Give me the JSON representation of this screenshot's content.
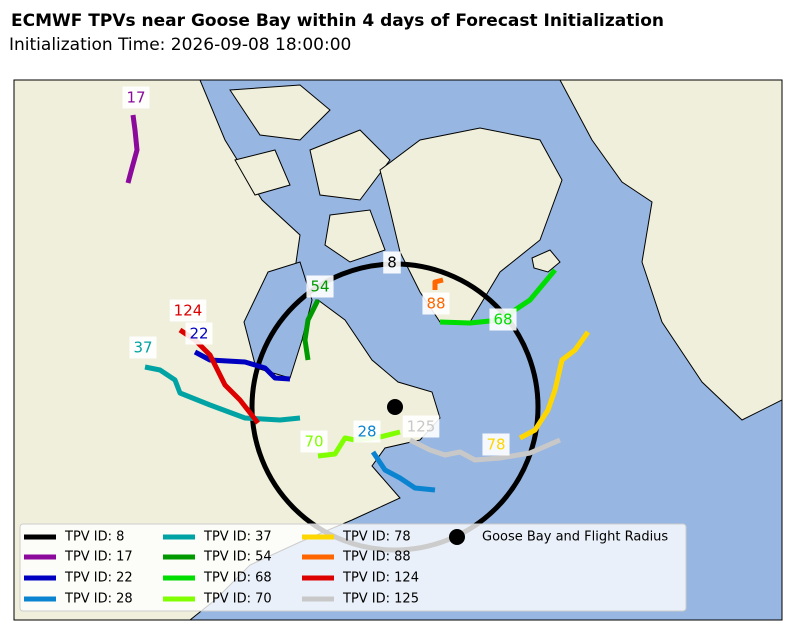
{
  "header": {
    "title": "ECMWF TPVs near Goose Bay within 4 days of Forecast Initialization",
    "subtitle": "Initialization Time: 2026-09-08 18:00:00"
  },
  "tracks": [
    {
      "label": "8",
      "name": "TPV ID: 8",
      "color": "#000000"
    },
    {
      "label": "17",
      "name": "TPV ID: 17",
      "color": "#8b0a9b"
    },
    {
      "label": "22",
      "name": "TPV ID: 22",
      "color": "#0000c0"
    },
    {
      "label": "28",
      "name": "TPV ID: 28",
      "color": "#0a84d0"
    },
    {
      "label": "37",
      "name": "TPV ID: 37",
      "color": "#00a3a3"
    },
    {
      "label": "54",
      "name": "TPV ID: 54",
      "color": "#009a00"
    },
    {
      "label": "68",
      "name": "TPV ID: 68",
      "color": "#00dd00"
    },
    {
      "label": "70",
      "name": "TPV ID: 70",
      "color": "#80ff00"
    },
    {
      "label": "78",
      "name": "TPV ID: 78",
      "color": "#ffd700"
    },
    {
      "label": "88",
      "name": "TPV ID: 88",
      "color": "#ff6600"
    },
    {
      "label": "124",
      "name": "TPV ID: 124",
      "color": "#dd0000"
    },
    {
      "label": "125",
      "name": "TPV ID: 125",
      "color": "#c8c8c8"
    }
  ],
  "goose_bay": {
    "name": "Goose Bay and Flight Radius",
    "color": "#000000"
  }
}
